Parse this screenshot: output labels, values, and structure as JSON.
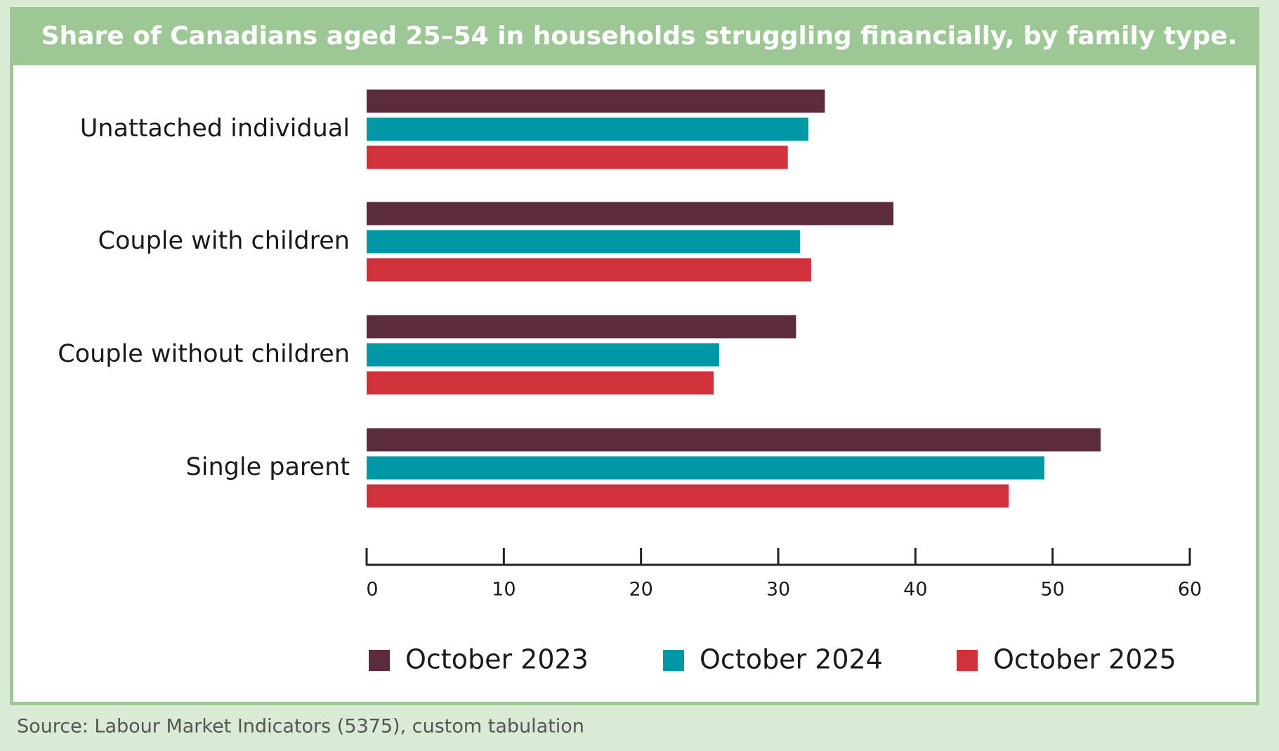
{
  "chart_data": {
    "type": "bar",
    "orientation": "horizontal",
    "title": "Share of Canadians aged 25–54 in households struggling financially, by family type.",
    "categories": [
      "Unattached individual",
      "Couple with children",
      "Couple without children",
      "Single parent"
    ],
    "series": [
      {
        "name": "October 2023",
        "color": "#5c2b3e",
        "values": [
          33.4,
          38.4,
          31.3,
          53.5
        ]
      },
      {
        "name": "October 2024",
        "color": "#0097a7",
        "values": [
          32.2,
          31.6,
          25.7,
          49.4
        ]
      },
      {
        "name": "October 2025",
        "color": "#d1313b",
        "values": [
          30.7,
          32.4,
          25.3,
          46.8
        ]
      }
    ],
    "xlim": [
      0,
      60
    ],
    "xticks": [
      0,
      10,
      20,
      30,
      40,
      50,
      60
    ],
    "legend": "bottom",
    "source": "Source: Labour Market Indicators (5375), custom tabulation"
  }
}
